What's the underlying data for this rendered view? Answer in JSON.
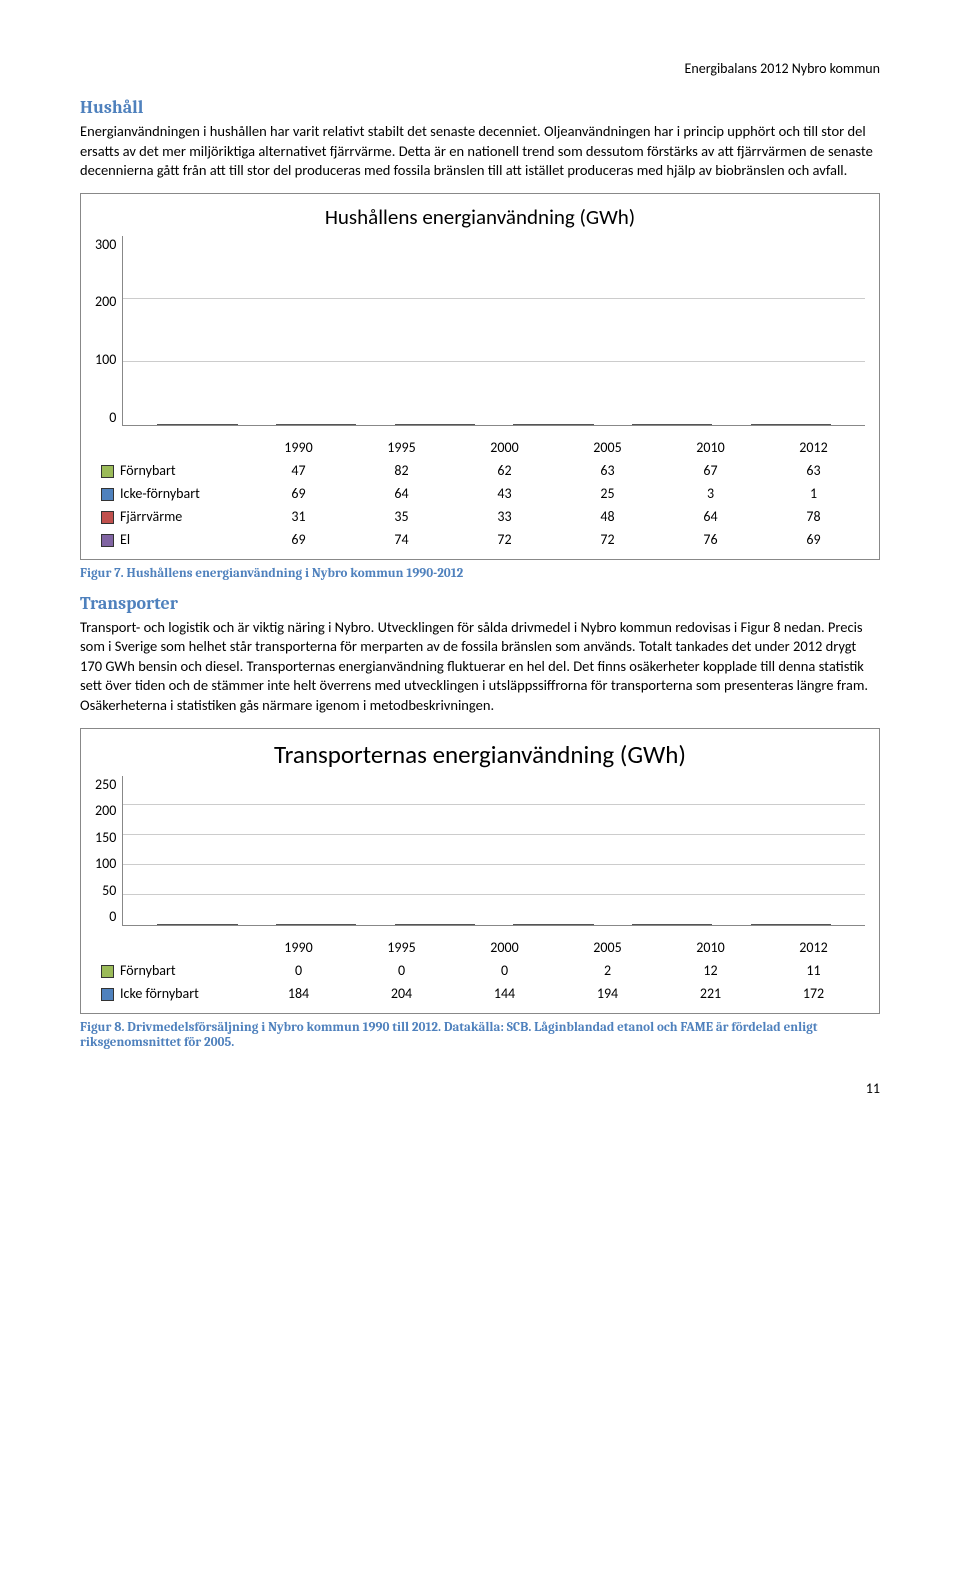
{
  "header": {
    "right": "Energibalans 2012 Nybro kommun"
  },
  "section1": {
    "title": "Hushåll",
    "para": "Energianvändningen i hushållen har varit relativt stabilt det senaste decenniet. Oljeanvändningen har i princip upphört och till stor del ersatts av det mer miljöriktiga alternativet fjärrvärme. Detta är en nationell trend som dessutom förstärks av att fjärrvärmen de senaste decennierna gått från att till stor del produceras med fossila bränslen till att istället produceras med hjälp av biobränslen och avfall."
  },
  "chart1": {
    "title": "Hushållens energianvändning (GWh)",
    "title_fontsize": 21,
    "type": "stacked-bar",
    "background_color": "#ffffff",
    "grid_color": "#cccccc",
    "ylim": [
      0,
      300
    ],
    "ytick_step": 100,
    "yticks": [
      "300",
      "200",
      "100",
      "0"
    ],
    "categories": [
      "1990",
      "1995",
      "2000",
      "2005",
      "2010",
      "2012"
    ],
    "series": [
      {
        "name": "Förnybart",
        "color": "#9bbb59",
        "values": [
          47,
          82,
          62,
          63,
          67,
          63
        ]
      },
      {
        "name": "Icke-förnybart",
        "color": "#4f81bd",
        "values": [
          69,
          64,
          43,
          25,
          3,
          1
        ]
      },
      {
        "name": "Fjärrvärme",
        "color": "#c0504d",
        "values": [
          31,
          35,
          33,
          48,
          64,
          78
        ]
      },
      {
        "name": "El",
        "color": "#8064a2",
        "values": [
          69,
          74,
          72,
          72,
          76,
          69
        ]
      }
    ]
  },
  "caption1": "Figur 7. Hushållens energianvändning i Nybro kommun 1990-2012",
  "section2": {
    "title": "Transporter",
    "para": "Transport- och logistik och är viktig näring i Nybro. Utvecklingen för sålda drivmedel i Nybro kommun redovisas i Figur 8 nedan. Precis som i Sverige som helhet står transporterna för merparten av de fossila bränslen som används. Totalt tankades det under 2012 drygt 170 GWh bensin och diesel. Transporternas energianvändning fluktuerar en hel del. Det finns osäkerheter kopplade till denna statistik sett över tiden och de stämmer inte helt överrens med utvecklingen i utsläppssiffrorna för transporterna som presenteras längre fram. Osäkerheterna i statistiken gås närmare igenom i metodbeskrivningen."
  },
  "chart2": {
    "title": "Transporternas energianvändning  (GWh)",
    "title_fontsize": 25,
    "type": "stacked-bar",
    "background_color": "#ffffff",
    "grid_color": "#cccccc",
    "ylim": [
      0,
      250
    ],
    "ytick_step": 50,
    "yticks": [
      "250",
      "200",
      "150",
      "100",
      "50",
      "0"
    ],
    "categories": [
      "1990",
      "1995",
      "2000",
      "2005",
      "2010",
      "2012"
    ],
    "series": [
      {
        "name": "Förnybart",
        "color": "#9bbb59",
        "values": [
          0,
          0,
          0,
          2,
          12,
          11
        ]
      },
      {
        "name": "Icke förnybart",
        "color": "#4f81bd",
        "values": [
          184,
          204,
          144,
          194,
          221,
          172
        ]
      }
    ]
  },
  "caption2": "Figur 8. Drivmedelsförsäljning i Nybro kommun 1990 till 2012. Datakälla: SCB. Låginblandad etanol och FAME är fördelad enligt riksgenomsnittet för 2005.",
  "page_number": "11"
}
